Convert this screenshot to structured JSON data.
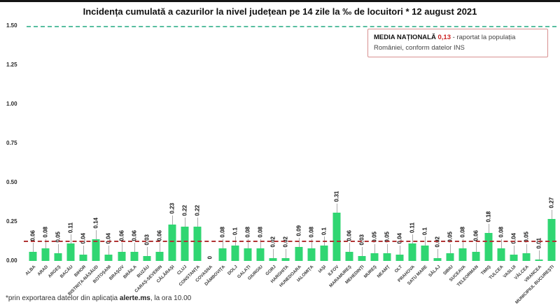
{
  "title": "Incidența cumulată a cazurilor la nivel județean pe 14 zile la ‰ de locuitori *  12 august 2021",
  "legend": {
    "label": "MEDIA NAȚIONALĂ",
    "value": "0,13",
    "text": "- raportat la populația României, conform datelor INS"
  },
  "footnote": {
    "prefix": "*prin exportarea datelor din aplicația ",
    "bold": "alerte.ms",
    "suffix": ", la ora 10.00"
  },
  "colors": {
    "bar": "#30d672",
    "national_line": "#b03333",
    "top_line": "#58bfa0",
    "legend_border": "#d79090",
    "value_red": "#cc2222"
  },
  "chart_data": {
    "type": "bar",
    "title": "Incidența cumulată a cazurilor la nivel județean pe 14 zile la ‰ de locuitori *  12 august 2021",
    "ylim": [
      0,
      1.5
    ],
    "yticks": [
      "1.50",
      "1.25",
      "1.00",
      "0.75",
      "0.50",
      "0.25",
      "0.00"
    ],
    "national_average": 0.13,
    "reference_line_top": 1.5,
    "grid": false,
    "legend_position": "top-right",
    "categories": [
      "ALBA",
      "ARAD",
      "ARGEȘ",
      "BACĂU",
      "BIHOR",
      "BISTRIȚA-NĂSĂUD",
      "BOTOȘANI",
      "BRAȘOV",
      "BRĂILA",
      "BUZĂU",
      "CARAȘ-SEVERIN",
      "CĂLĂRAȘI",
      "CLUJ",
      "CONSTANȚA",
      "COVASNA",
      "DÂMBOVIȚA",
      "DOLJ",
      "GALAȚI",
      "GIURGIU",
      "GORJ",
      "HARGHITA",
      "HUNEDOARA",
      "IALOMIȚA",
      "IAȘI",
      "ILFOV",
      "MARAMUREȘ",
      "MEHEDINȚI",
      "MUREȘ",
      "NEAMȚ",
      "OLT",
      "PRAHOVA",
      "SATU MARE",
      "SĂLAJ",
      "SIBIU",
      "SUCEAVA",
      "TELEORMAN",
      "TIMIȘ",
      "TULCEA",
      "VASLUI",
      "VÂLCEA",
      "VRANCEA",
      "MUNICIPIUL BUCUREȘTI"
    ],
    "values": [
      0.06,
      0.08,
      0.05,
      0.11,
      0.04,
      0.14,
      0.04,
      0.06,
      0.06,
      0.03,
      0.06,
      0.23,
      0.22,
      0.22,
      0,
      0.08,
      0.1,
      0.08,
      0.08,
      0.02,
      0.02,
      0.09,
      0.08,
      0.1,
      0.31,
      0.06,
      0.03,
      0.05,
      0.05,
      0.04,
      0.11,
      0.1,
      0.02,
      0.05,
      0.08,
      0.06,
      0.18,
      0.08,
      0.04,
      0.05,
      0.01,
      0.27
    ],
    "value_labels": [
      "0.06",
      "0.08",
      "0.05",
      "0.11",
      "0.04",
      "0.14",
      "0.04",
      "0.06",
      "0.06",
      "0.03",
      "0.06",
      "0.23",
      "0.22",
      "0.22",
      "0",
      "0.08",
      "0.1",
      "0.08",
      "0.08",
      "0.02",
      "0.02",
      "0.09",
      "0.08",
      "0.1",
      "0.31",
      "0.06",
      "0.03",
      "0.05",
      "0.05",
      "0.04",
      "0.11",
      "0.1",
      "0.02",
      "0.05",
      "0.08",
      "0.06",
      "0.18",
      "0.08",
      "0.04",
      "0.05",
      "0.01",
      "0.27"
    ]
  }
}
